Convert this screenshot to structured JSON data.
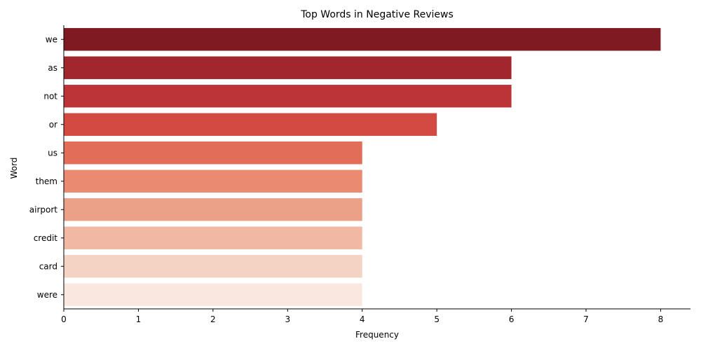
{
  "chart_data": {
    "type": "bar",
    "orientation": "horizontal",
    "title": "Top Words in Negative Reviews",
    "xlabel": "Frequency",
    "ylabel": "Word",
    "categories": [
      "we",
      "as",
      "not",
      "or",
      "us",
      "them",
      "airport",
      "credit",
      "card",
      "were"
    ],
    "values": [
      8,
      6,
      6,
      5,
      4,
      4,
      4,
      4,
      4,
      4
    ],
    "colors": [
      "#7f1a22",
      "#a1262d",
      "#bc3338",
      "#d34a42",
      "#e26d58",
      "#e98a71",
      "#eba088",
      "#f1b9a4",
      "#f4d3c5",
      "#fae8e0"
    ],
    "xlim": [
      0,
      8.4
    ],
    "xticks": [
      0,
      1,
      2,
      3,
      4,
      5,
      6,
      7,
      8
    ],
    "grid": false,
    "legend": "none"
  }
}
